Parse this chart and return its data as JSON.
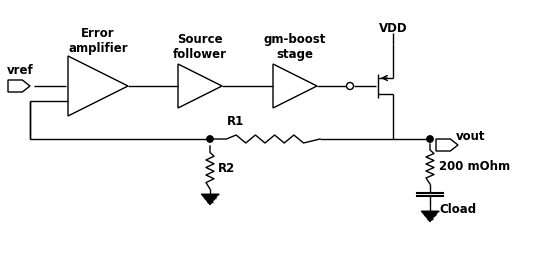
{
  "bg_color": "#ffffff",
  "line_color": "#000000",
  "labels": {
    "vref": "vref",
    "error_amp": "Error\namplifier",
    "source_follower": "Source\nfollower",
    "gm_boost": "gm-boost\nstage",
    "vdd": "VDD",
    "vout": "vout",
    "r1": "R1",
    "r2": "R2",
    "res_200": "200 mOhm",
    "cload": "Cload"
  },
  "figsize": [
    5.58,
    2.55
  ],
  "dpi": 100
}
